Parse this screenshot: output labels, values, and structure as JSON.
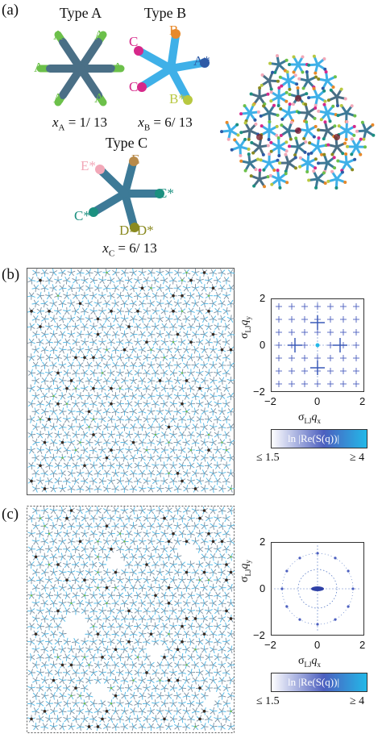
{
  "panel_a": {
    "label": "(a)",
    "type_a": {
      "title": "Type A",
      "arms": [
        "A",
        "A",
        "A",
        "A",
        "A",
        "A"
      ],
      "fraction_prefix": "x",
      "fraction_sub": "A",
      "fraction_value": " = 1/ 13",
      "arm_color": "#6cc04a",
      "core_color": "#4a6f86"
    },
    "type_b": {
      "title": "Type B",
      "arms": [
        "B",
        "A*",
        "B*",
        "C",
        "C"
      ],
      "fraction_prefix": "x",
      "fraction_sub": "B",
      "fraction_value": " = 6/ 13",
      "arm_color": "#3fb0e8",
      "label_colors": [
        "#e8892a",
        "#2e5aa6",
        "#b8c840",
        "#d6288a",
        "#d6288a"
      ]
    },
    "type_c": {
      "title": "Type C",
      "arms": [
        "E",
        "C*",
        "D=D*",
        "C*",
        "E*"
      ],
      "fraction_prefix": "x",
      "fraction_sub": "C",
      "fraction_value": " = 6/ 13",
      "arm_color": "#3d7a97",
      "label_colors": [
        "#b88a4a",
        "#1c9080",
        "#8a8a20",
        "#1c9080",
        "#f2a8b8"
      ]
    }
  },
  "panel_b": {
    "label": "(b)",
    "tick_neg": "−2",
    "tick_zero": "0",
    "tick_pos": "2",
    "colorbar_title": "ln |Re(S(q))|",
    "colorbar_min": "≤ 1.5",
    "colorbar_max": "≥ 4",
    "ylabel_main": "σ",
    "ylabel_sub": "LJ",
    "ylabel_var": "q",
    "ylabel_var_sub": "y",
    "xlabel_var_sub": "x"
  },
  "panel_c": {
    "label": "(c)",
    "tick_neg": "−2",
    "tick_zero": "0",
    "tick_pos": "2",
    "colorbar_title": "ln |Re(S(q))|",
    "colorbar_min": "≤ 1.5",
    "colorbar_max": "≥ 4"
  },
  "colors": {
    "snap_blue": "#4ab6e6",
    "snap_dark": "#3a3a3a",
    "spot_blue": "#5a7cc8",
    "colorbar_start": "#ffffff",
    "colorbar_mid": "#4c5fbf",
    "colorbar_end": "#23b8e8"
  }
}
